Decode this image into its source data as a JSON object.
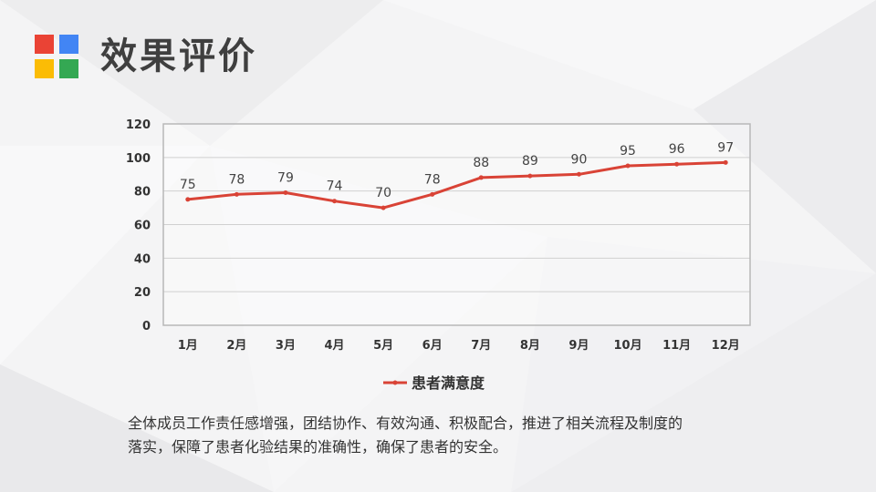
{
  "slide": {
    "title": "效果评价",
    "description_lines": [
      "全体成员工作责任感增强，团结协作、有效沟通、积极配合，推进了相关流程及制度的",
      "落实，保障了患者化验结果的准确性，确保了患者的安全。"
    ]
  },
  "logo": {
    "colors": [
      "#ea4335",
      "#4285f4",
      "#fbbc05",
      "#34a853"
    ]
  },
  "chart_data": {
    "type": "line",
    "categories": [
      "1月",
      "2月",
      "3月",
      "4月",
      "5月",
      "6月",
      "7月",
      "8月",
      "9月",
      "10月",
      "11月",
      "12月"
    ],
    "series": [
      {
        "name": "患者满意度",
        "values": [
          75,
          78,
          79,
          74,
          70,
          78,
          88,
          89,
          90,
          95,
          96,
          97
        ],
        "color": "#d94336"
      }
    ],
    "yticks": [
      "0",
      "20",
      "40",
      "60",
      "80",
      "100",
      "120"
    ],
    "ylim": [
      0,
      120
    ],
    "grid": true,
    "legend": "bottom",
    "data_labels": true
  }
}
